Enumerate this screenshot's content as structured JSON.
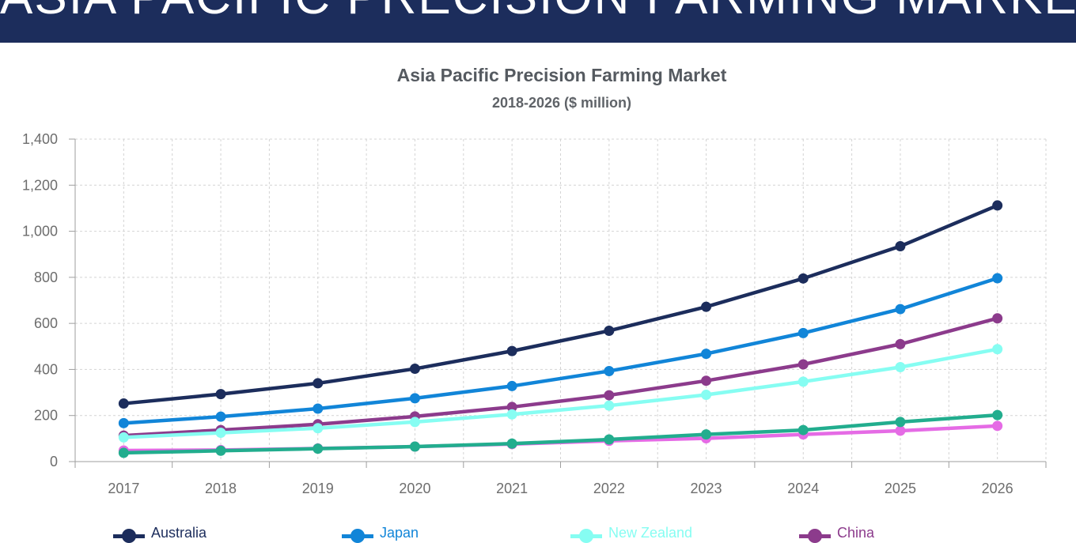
{
  "banner": {
    "title": "ASIA PACIFIC PRECISION FARMING MARKET"
  },
  "chart_data": {
    "type": "line",
    "title": "Asia Pacific Precision Farming Market",
    "subtitle": "2018-2026 ($ million)",
    "xlabel": "",
    "ylabel": "",
    "x": [
      "2017",
      "2018",
      "2019",
      "2020",
      "2021",
      "2022",
      "2023",
      "2024",
      "2025",
      "2026"
    ],
    "ylim": [
      0,
      1400
    ],
    "yticks": [
      "0",
      "200",
      "400",
      "600",
      "800",
      "1,000",
      "1,200",
      "1,400"
    ],
    "grid": true,
    "legend_position": "bottom",
    "series": [
      {
        "name": "Australia",
        "color": "#1c2d5c",
        "values": [
          252,
          293,
          340,
          403,
          480,
          568,
          672,
          795,
          935,
          1112
        ]
      },
      {
        "name": "Japan",
        "color": "#1185d8",
        "values": [
          167,
          195,
          230,
          275,
          328,
          393,
          468,
          558,
          662,
          796
        ]
      },
      {
        "name": "New Zealand",
        "color": "#86fdf2",
        "values": [
          105,
          125,
          145,
          172,
          205,
          243,
          290,
          347,
          410,
          488
        ]
      },
      {
        "name": "China",
        "color": "#8c3b8c",
        "values": [
          113,
          137,
          162,
          196,
          237,
          288,
          351,
          422,
          510,
          622
        ]
      },
      {
        "name": "",
        "color": "#22ad8e",
        "values": [
          38,
          47,
          56,
          65,
          78,
          96,
          118,
          137,
          172,
          202
        ]
      },
      {
        "name": "",
        "color": "#e56be5",
        "values": [
          48,
          50,
          57,
          65,
          76,
          90,
          101,
          118,
          134,
          155
        ]
      }
    ]
  }
}
